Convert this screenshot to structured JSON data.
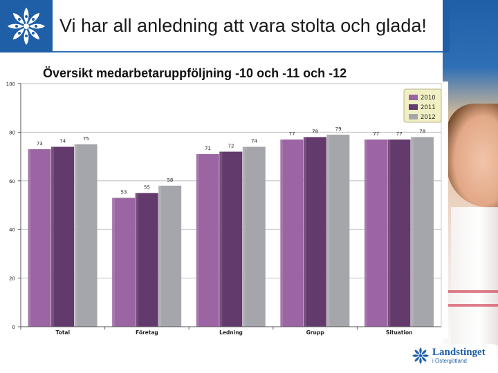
{
  "header": {
    "title": "Vi har all anledning att vara stolta och glada!"
  },
  "slide": {
    "subtitle": "Översikt medarbetaruppföljning -10 och -11 och -12"
  },
  "footer": {
    "brand": "Landstinget",
    "brand_sub": "i Östergötland"
  },
  "colors": {
    "brand_blue": "#1f5fa8",
    "series_2010": "#9b64a2",
    "series_2011": "#633a6c",
    "series_2012": "#a5a6ab",
    "legend_bg": "#f1efc4"
  },
  "chart_data": {
    "type": "bar",
    "categories": [
      "Total",
      "Företag",
      "Ledning",
      "Grupp",
      "Situation"
    ],
    "series": [
      {
        "name": "2010",
        "values": [
          73,
          53,
          71,
          77,
          77
        ],
        "color": "#9b64a2"
      },
      {
        "name": "2011",
        "values": [
          74,
          55,
          72,
          78,
          77
        ],
        "color": "#633a6c"
      },
      {
        "name": "2012",
        "values": [
          75,
          58,
          74,
          79,
          78
        ],
        "color": "#a5a6ab"
      }
    ],
    "yticks": [
      0,
      20,
      40,
      60,
      80,
      100
    ],
    "ylim": [
      0,
      100
    ],
    "grid": true,
    "legend_position": "top-right",
    "data_labels": true
  }
}
